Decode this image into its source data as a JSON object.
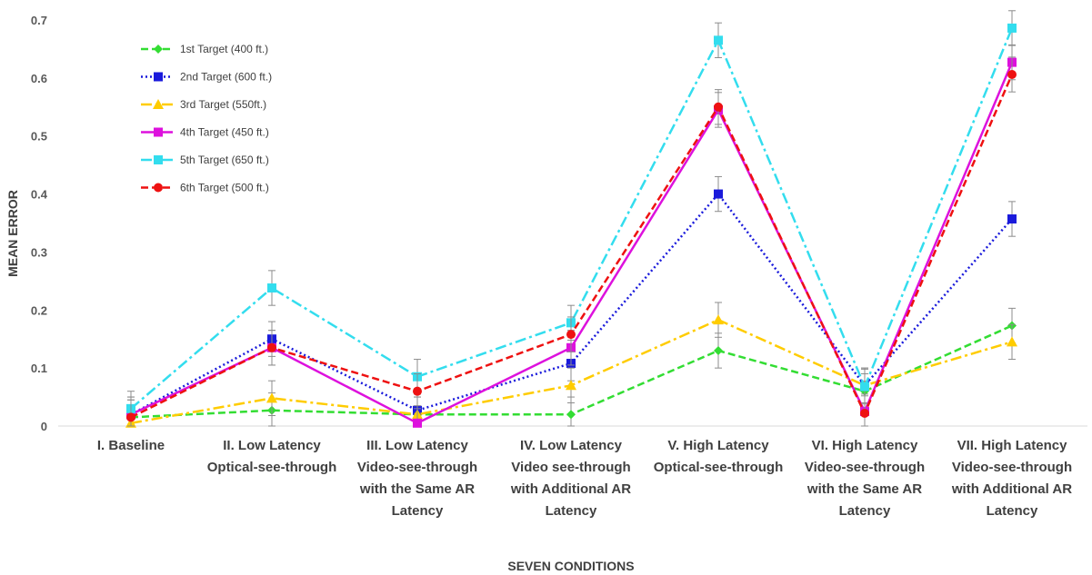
{
  "chart_data": {
    "type": "line",
    "title": "",
    "xlabel": "SEVEN CONDITIONS",
    "ylabel": "MEAN ERROR",
    "ylim": [
      0,
      0.7
    ],
    "yticks": [
      0,
      0.1,
      0.2,
      0.3,
      0.4,
      0.5,
      0.6,
      0.7
    ],
    "ytick_labels": [
      "0",
      "0.1",
      "0.2",
      "0.3",
      "0.4",
      "0.5",
      "0.6",
      "0.7"
    ],
    "categories": [
      "I. Baseline",
      "II. Low Latency Optical-see-through",
      "III. Low Latency Video-see-through with the Same AR Latency",
      "IV. Low Latency Video see-through with Additional AR Latency",
      "V. High Latency Optical-see-through",
      "VI. High Latency Video-see-through with the Same AR Latency",
      "VII. High Latency Video-see-through with Additional AR Latency"
    ],
    "category_lines": [
      [
        "I. Baseline"
      ],
      [
        "II. Low Latency",
        "Optical-see-through"
      ],
      [
        "III. Low Latency",
        "Video-see-through",
        "with the Same AR",
        "Latency"
      ],
      [
        "IV. Low Latency",
        "Video see-through",
        "with Additional AR",
        "Latency"
      ],
      [
        "V. High Latency",
        "Optical-see-through"
      ],
      [
        "VI. High Latency",
        "Video-see-through",
        "with the Same AR",
        "Latency"
      ],
      [
        "VII. High Latency",
        "Video-see-through",
        "with Additional AR",
        "Latency"
      ]
    ],
    "grid": false,
    "legend_position": "top-left",
    "error_bar": 0.03,
    "series": [
      {
        "name": "1st Target (400 ft.)",
        "color": "#33dd33",
        "dash": "dashed",
        "marker": "diamond",
        "values": [
          0.015,
          0.027,
          0.02,
          0.02,
          0.13,
          0.06,
          0.173
        ]
      },
      {
        "name": "2nd Target (600 ft.)",
        "color": "#1a1adb",
        "dash": "dotted",
        "marker": "square",
        "values": [
          0.02,
          0.15,
          0.027,
          0.108,
          0.4,
          0.07,
          0.357
        ]
      },
      {
        "name": "3rd Target (550ft.)",
        "color": "#ffcc00",
        "dash": "dashdot",
        "marker": "triangle",
        "values": [
          0.005,
          0.048,
          0.02,
          0.07,
          0.183,
          0.07,
          0.145
        ]
      },
      {
        "name": "4th Target (450 ft.)",
        "color": "#dd11dd",
        "dash": "solid",
        "marker": "square",
        "values": [
          0.02,
          0.135,
          0.005,
          0.135,
          0.545,
          0.025,
          0.627
        ]
      },
      {
        "name": "5th Target (650 ft.)",
        "color": "#33ddee",
        "dash": "dashdot",
        "marker": "square",
        "values": [
          0.03,
          0.238,
          0.085,
          0.178,
          0.665,
          0.068,
          0.686
        ]
      },
      {
        "name": "6th Target (500 ft.)",
        "color": "#ee1111",
        "dash": "dashed",
        "marker": "circle",
        "values": [
          0.015,
          0.135,
          0.06,
          0.158,
          0.55,
          0.022,
          0.606
        ]
      }
    ]
  }
}
